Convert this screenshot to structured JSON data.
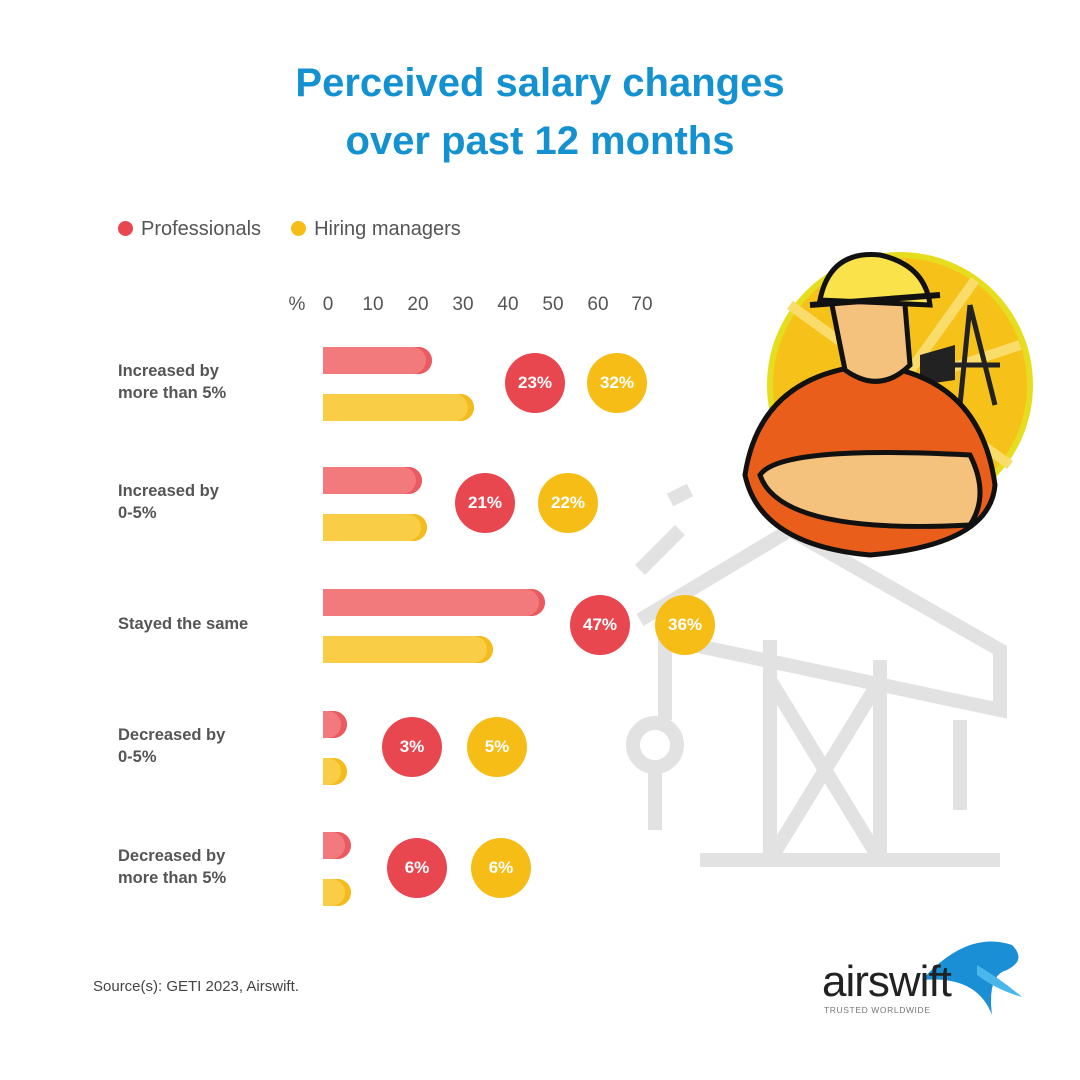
{
  "chart_data": {
    "type": "bar",
    "title_line1": "Perceived salary changes",
    "title_line2": "over past 12 months",
    "orientation": "horizontal",
    "categories": [
      [
        "Increased by",
        "more than 5%"
      ],
      [
        "Increased by",
        "0-5%"
      ],
      [
        "Stayed the same",
        ""
      ],
      [
        "Decreased by",
        "0-5%"
      ],
      [
        "Decreased by",
        "more than 5%"
      ]
    ],
    "series": [
      {
        "name": "Professionals",
        "color": "#e8474f",
        "values": [
          23,
          21,
          47,
          3,
          6
        ],
        "labels": [
          "23%",
          "21%",
          "47%",
          "3%",
          "6%"
        ]
      },
      {
        "name": "Hiring managers",
        "color": "#f6bd16",
        "values": [
          32,
          22,
          36,
          5,
          6
        ],
        "labels": [
          "32%",
          "22%",
          "36%",
          "5%",
          "6%"
        ]
      }
    ],
    "xunit": "%",
    "xticks": [
      "0",
      "10",
      "20",
      "30",
      "40",
      "50",
      "60",
      "70"
    ],
    "xlim": [
      0,
      70
    ],
    "legend": "top-left"
  },
  "source": "Source(s): GETI 2023, Airswift.",
  "logo": {
    "name": "airswift",
    "tagline": "TRUSTED WORLDWIDE"
  }
}
